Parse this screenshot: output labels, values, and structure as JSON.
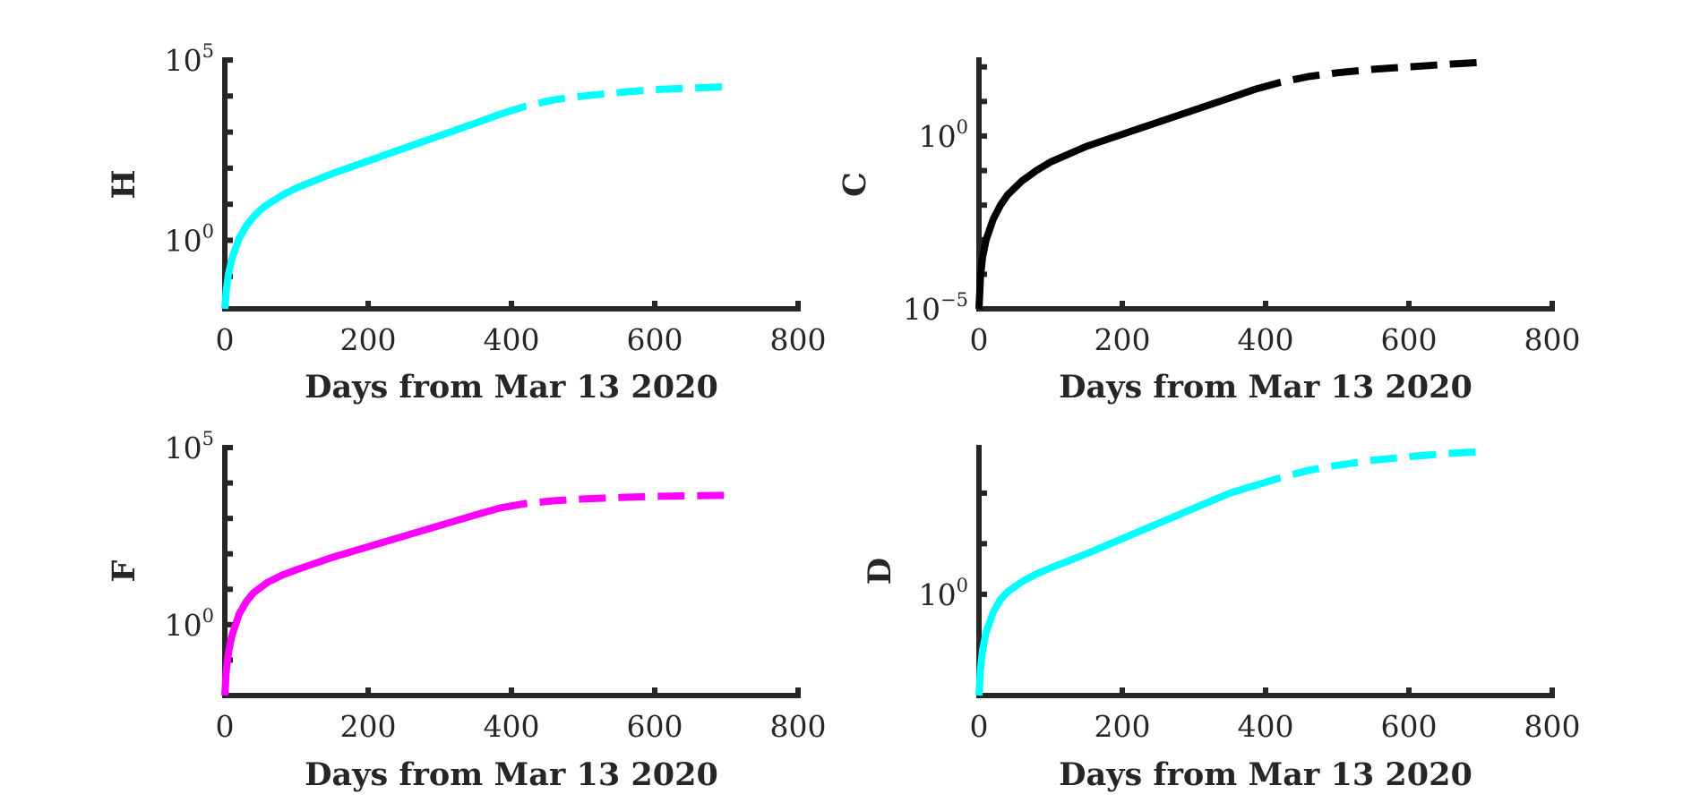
{
  "chart_data": [
    {
      "type": "line",
      "ylabel": "H",
      "xlabel": "Days from Mar 13 2020",
      "xlim": [
        0,
        800
      ],
      "xticks": [
        "0",
        "200",
        "400",
        "600",
        "800"
      ],
      "yscale": "log",
      "ylim_log10": [
        -1.9,
        5
      ],
      "ytick_labels": [
        {
          "base": "10",
          "exp": "0",
          "log10": 0
        },
        {
          "base": "10",
          "exp": "5",
          "log10": 5
        }
      ],
      "color": "#00ffff",
      "series": [
        {
          "name": "fitted",
          "style": "solid",
          "x": [
            0,
            2,
            5,
            10,
            20,
            30,
            40,
            50,
            60,
            80,
            100,
            150,
            200,
            250,
            300,
            350,
            385
          ],
          "log10y": [
            -1.9,
            -1.4,
            -0.95,
            -0.5,
            0.05,
            0.4,
            0.65,
            0.85,
            1.0,
            1.25,
            1.45,
            1.85,
            2.2,
            2.55,
            2.9,
            3.25,
            3.5
          ]
        },
        {
          "name": "projected",
          "style": "dashed",
          "x": [
            385,
            420,
            460,
            500,
            550,
            600,
            650,
            700
          ],
          "log10y": [
            3.5,
            3.72,
            3.9,
            4.0,
            4.1,
            4.18,
            4.22,
            4.26
          ]
        }
      ]
    },
    {
      "type": "line",
      "ylabel": "C",
      "xlabel": "Days from Mar 13 2020",
      "xlim": [
        0,
        800
      ],
      "xticks": [
        "0",
        "200",
        "400",
        "600",
        "800"
      ],
      "yscale": "log",
      "ylim_log10": [
        -5,
        2.2
      ],
      "ytick_labels": [
        {
          "base": "10",
          "exp": "−5",
          "log10": -5
        },
        {
          "base": "10",
          "exp": "0",
          "log10": 0
        }
      ],
      "color": "#000000",
      "series": [
        {
          "name": "fitted",
          "style": "solid",
          "x": [
            0,
            2,
            5,
            10,
            20,
            30,
            40,
            50,
            60,
            80,
            100,
            150,
            200,
            250,
            300,
            350,
            385
          ],
          "log10y": [
            -5,
            -4.1,
            -3.5,
            -3.0,
            -2.4,
            -2.0,
            -1.7,
            -1.5,
            -1.3,
            -1.0,
            -0.75,
            -0.3,
            0.05,
            0.4,
            0.75,
            1.1,
            1.35
          ]
        },
        {
          "name": "projected",
          "style": "dashed",
          "x": [
            385,
            420,
            460,
            500,
            550,
            600,
            650,
            700
          ],
          "log10y": [
            1.35,
            1.55,
            1.72,
            1.83,
            1.93,
            2.0,
            2.07,
            2.13
          ]
        }
      ]
    },
    {
      "type": "line",
      "ylabel": "F",
      "xlabel": "Days from Mar 13 2020",
      "xlim": [
        0,
        800
      ],
      "xticks": [
        "0",
        "200",
        "400",
        "600",
        "800"
      ],
      "yscale": "log",
      "ylim_log10": [
        -2,
        5
      ],
      "ytick_labels": [
        {
          "base": "10",
          "exp": "0",
          "log10": 0
        },
        {
          "base": "10",
          "exp": "5",
          "log10": 5
        }
      ],
      "color": "#ff00ff",
      "series": [
        {
          "name": "fitted",
          "style": "solid",
          "x": [
            0,
            2,
            5,
            10,
            20,
            30,
            40,
            50,
            60,
            80,
            100,
            150,
            200,
            250,
            300,
            350,
            385
          ],
          "log10y": [
            -2,
            -1.3,
            -0.8,
            -0.3,
            0.3,
            0.65,
            0.9,
            1.05,
            1.2,
            1.4,
            1.55,
            1.9,
            2.2,
            2.5,
            2.8,
            3.1,
            3.3
          ]
        },
        {
          "name": "projected",
          "style": "dashed",
          "x": [
            385,
            420,
            460,
            500,
            550,
            600,
            650,
            700
          ],
          "log10y": [
            3.3,
            3.42,
            3.5,
            3.55,
            3.59,
            3.62,
            3.64,
            3.65
          ]
        }
      ]
    },
    {
      "type": "line",
      "ylabel": "D",
      "xlabel": "Days from Mar 13 2020",
      "xlim": [
        0,
        800
      ],
      "xticks": [
        "0",
        "200",
        "400",
        "600",
        "800"
      ],
      "yscale": "log",
      "ylim_log10": [
        -2,
        2.9
      ],
      "ytick_labels": [
        {
          "base": "10",
          "exp": "0",
          "log10": 0
        }
      ],
      "color": "#00ffff",
      "series": [
        {
          "name": "fitted",
          "style": "solid",
          "x": [
            0,
            2,
            5,
            10,
            20,
            30,
            40,
            50,
            60,
            80,
            100,
            150,
            200,
            250,
            300,
            350,
            385
          ],
          "log10y": [
            -2,
            -1.5,
            -1.1,
            -0.75,
            -0.35,
            -0.1,
            0.05,
            0.15,
            0.25,
            0.4,
            0.52,
            0.8,
            1.1,
            1.4,
            1.7,
            2.0,
            2.15
          ]
        },
        {
          "name": "projected",
          "style": "dashed",
          "x": [
            385,
            420,
            460,
            500,
            550,
            600,
            650,
            700
          ],
          "log10y": [
            2.15,
            2.3,
            2.45,
            2.55,
            2.65,
            2.72,
            2.78,
            2.82
          ]
        }
      ]
    }
  ]
}
